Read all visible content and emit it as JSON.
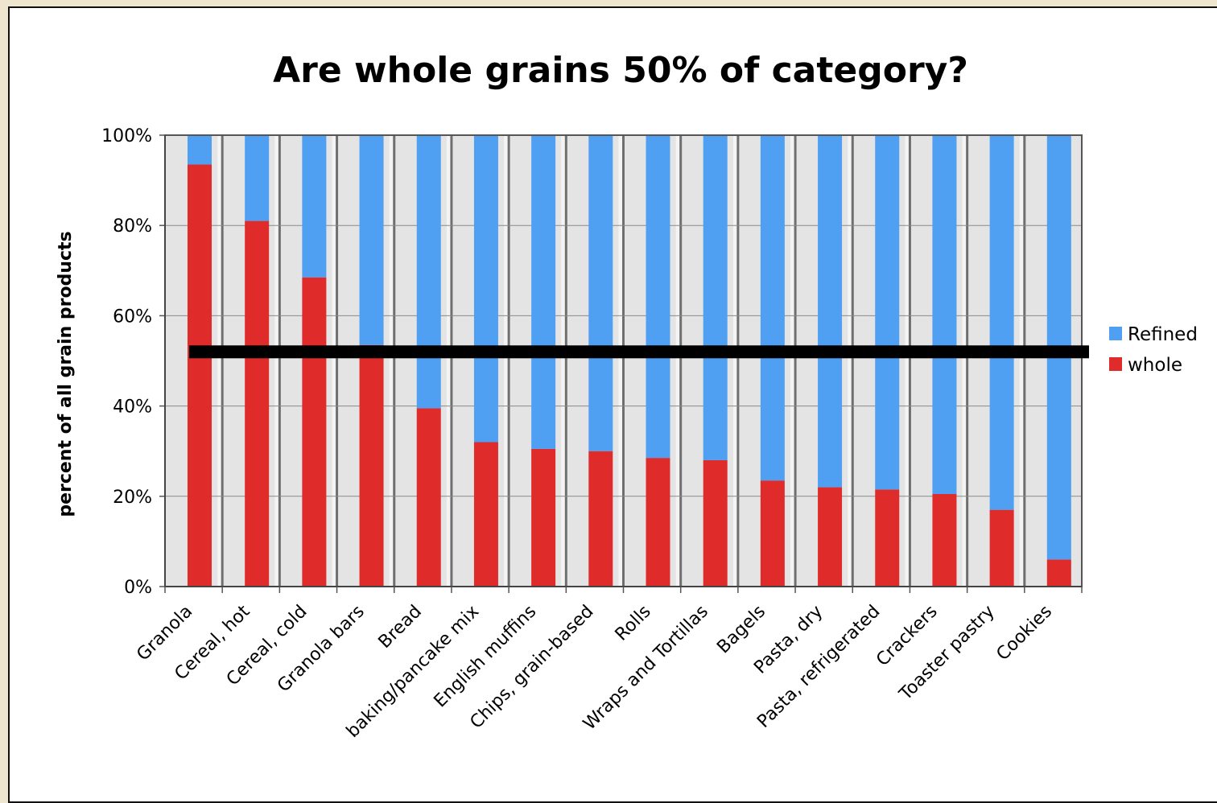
{
  "chart_data": {
    "type": "bar",
    "stacked": true,
    "title": "Are whole grains 50% of category?",
    "ylabel": "percent of all grain products",
    "xlabel": "",
    "ylim": [
      0,
      100
    ],
    "yticks": [
      "0%",
      "20%",
      "40%",
      "60%",
      "80%",
      "100%"
    ],
    "categories": [
      "Granola",
      "Cereal, hot",
      "Cereal, cold",
      "Granola bars",
      "Bread",
      "baking/pancake mix",
      "English muffins",
      "Chips, grain-based",
      "Rolls",
      "Wraps and Tortillas",
      "Bagels",
      "Pasta, dry",
      "Pasta, refrigerated",
      "Crackers",
      "Toaster pastry",
      "Cookies"
    ],
    "series": [
      {
        "name": "whole",
        "color": "#e02b2b",
        "values": [
          93.5,
          81,
          68.5,
          53.5,
          39.5,
          32,
          30.5,
          30,
          28.5,
          28,
          23.5,
          22,
          21.5,
          20.5,
          17,
          6
        ]
      },
      {
        "name": "Refined",
        "color": "#4f9ff3",
        "values": [
          6.5,
          19,
          31.5,
          46.5,
          60.5,
          68,
          69.5,
          70,
          71.5,
          72,
          76.5,
          78,
          78.5,
          79.5,
          83,
          94
        ]
      }
    ],
    "reference_line": 52,
    "legend": [
      "Refined",
      "whole"
    ],
    "legend_position": "right",
    "grid": true
  }
}
